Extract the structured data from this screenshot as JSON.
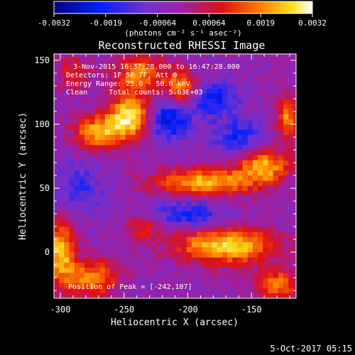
{
  "chart_data": {
    "type": "heatmap",
    "title": "Reconstructed RHESSI Image",
    "xlabel": "Heliocentric X (arcsec)",
    "ylabel": "Heliocentric Y (arcsec)",
    "xlim": [
      -305,
      -115
    ],
    "ylim": [
      -36,
      155
    ],
    "xticks": [
      -300,
      -250,
      -200,
      -150
    ],
    "yticks": [
      0,
      50,
      100,
      150
    ],
    "colorbar": {
      "ticks": [
        "-0.0032",
        "-0.0019",
        "-0.00064",
        "0.00064",
        "0.0019",
        "0.0032"
      ],
      "range": [
        -0.0032,
        0.0032
      ],
      "units": "(photons cm⁻² s⁻¹ asec⁻²)"
    },
    "annotations": [
      "3-Nov-2015 16:37:28.000 to 16:47:28.000",
      "Detectors: 1F 5F 7F, Att 0",
      "Energy Range: 25.0 - 50.0 keV",
      "Clean     Total counts: 5.63E+03"
    ],
    "peak_label": "Position of Peak = [-242,107]",
    "footer_date": "5-Oct-2017 05:15",
    "pixel_size_arcsec": 4,
    "blobs": [
      {
        "x": -245,
        "y": 107,
        "value": 0.0032,
        "sx": 12,
        "sy": 12
      },
      {
        "x": -270,
        "y": 94,
        "value": 0.0026,
        "sx": 14,
        "sy": 9
      },
      {
        "x": -238,
        "y": 140,
        "value": 0.0022,
        "sx": 14,
        "sy": 10
      },
      {
        "x": -205,
        "y": 128,
        "value": 0.0025,
        "sx": 10,
        "sy": 10
      },
      {
        "x": -185,
        "y": 55,
        "value": 0.0027,
        "sx": 28,
        "sy": 8
      },
      {
        "x": -140,
        "y": 68,
        "value": 0.0026,
        "sx": 14,
        "sy": 9
      },
      {
        "x": -170,
        "y": 5,
        "value": 0.003,
        "sx": 28,
        "sy": 10
      },
      {
        "x": -300,
        "y": 0,
        "value": 0.0028,
        "sx": 8,
        "sy": 18
      },
      {
        "x": -275,
        "y": -20,
        "value": 0.0023,
        "sx": 14,
        "sy": 10
      },
      {
        "x": -122,
        "y": 105,
        "value": 0.0023,
        "sx": 6,
        "sy": 12
      },
      {
        "x": -130,
        "y": -25,
        "value": 0.0022,
        "sx": 12,
        "sy": 8
      },
      {
        "x": -235,
        "y": 20,
        "value": 0.0012,
        "sx": 10,
        "sy": 8
      },
      {
        "x": -290,
        "y": 140,
        "value": 0.0012,
        "sx": 10,
        "sy": 10
      },
      {
        "x": -215,
        "y": 105,
        "value": -0.0022,
        "sx": 12,
        "sy": 12
      },
      {
        "x": -180,
        "y": 120,
        "value": -0.0018,
        "sx": 14,
        "sy": 10
      },
      {
        "x": -200,
        "y": 30,
        "value": -0.0016,
        "sx": 20,
        "sy": 8
      },
      {
        "x": -160,
        "y": 90,
        "value": -0.0015,
        "sx": 14,
        "sy": 10
      },
      {
        "x": -285,
        "y": 50,
        "value": -0.0012,
        "sx": 14,
        "sy": 14
      }
    ]
  }
}
